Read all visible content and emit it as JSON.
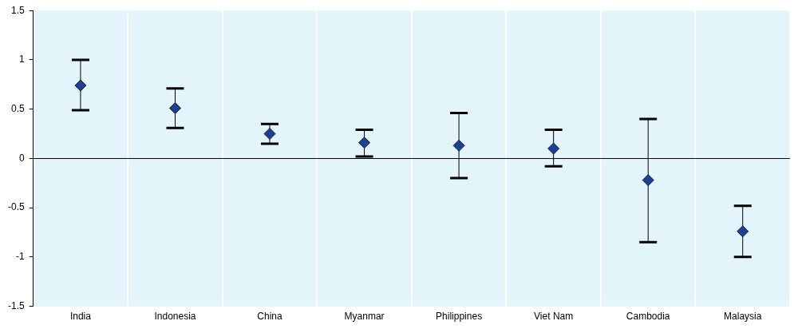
{
  "chart_data": {
    "type": "scatter",
    "categories": [
      "India",
      "Indonesia",
      "China",
      "Myanmar",
      "Philippines",
      "Viet Nam",
      "Cambodia",
      "Malaysia"
    ],
    "values": [
      0.74,
      0.51,
      0.25,
      0.16,
      0.13,
      0.1,
      -0.22,
      -0.74
    ],
    "lower": [
      0.49,
      0.31,
      0.15,
      0.02,
      -0.2,
      -0.08,
      -0.85,
      -1.0
    ],
    "upper": [
      1.0,
      0.71,
      0.35,
      0.29,
      0.46,
      0.29,
      0.4,
      -0.48
    ],
    "color": "#1f3f8f",
    "marker": "diamond",
    "ylim": [
      -1.5,
      1.5
    ],
    "yticks": [
      -1.5,
      -1,
      -0.5,
      0,
      0.5,
      1,
      1.5
    ],
    "grid": true
  }
}
